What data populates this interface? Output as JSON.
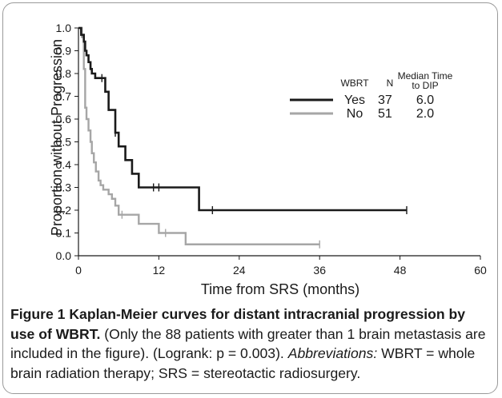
{
  "chart_data": {
    "type": "line",
    "step": true,
    "xlabel": "Time from SRS (months)",
    "ylabel": "Proportion without Progression",
    "xlim": [
      0,
      60
    ],
    "ylim": [
      0,
      1.0
    ],
    "xticks": [
      "0",
      "12",
      "24",
      "36",
      "48",
      "60"
    ],
    "yticks": [
      "0.0",
      "0.1",
      "0.2",
      "0.3",
      "0.4",
      "0.5",
      "0.6",
      "0.7",
      "0.8",
      "0.9",
      "1.0"
    ],
    "grid": false,
    "legend": {
      "placement": "center-right",
      "title": "WBRT",
      "col_n": "N",
      "col_median": [
        "Median Time",
        "to DIP"
      ],
      "entries": [
        {
          "label": "Yes",
          "n": "37",
          "median": "6.0",
          "color": "#1a1a1a"
        },
        {
          "label": "No",
          "n": "51",
          "median": "2.0",
          "color": "#a6a6a6"
        }
      ]
    },
    "series": [
      {
        "name": "Yes",
        "color": "#1a1a1a",
        "x": [
          0,
          0.4,
          0.8,
          1.0,
          1.2,
          1.5,
          1.8,
          2.0,
          2.5,
          3.0,
          3.5,
          4.0,
          4.5,
          5.0,
          5.5,
          6.0,
          6.5,
          7.0,
          8.0,
          9.0,
          11.0,
          12.0,
          18.0,
          20.0,
          49.0
        ],
        "y": [
          1.0,
          0.97,
          0.94,
          0.9,
          0.88,
          0.85,
          0.82,
          0.8,
          0.78,
          0.78,
          0.78,
          0.72,
          0.64,
          0.64,
          0.54,
          0.48,
          0.48,
          0.42,
          0.36,
          0.3,
          0.3,
          0.3,
          0.2,
          0.2,
          0.2
        ],
        "censored_x": [
          3.5,
          5.5,
          11.2,
          12.0,
          20.0,
          49.0
        ]
      },
      {
        "name": "No",
        "color": "#a6a6a6",
        "x": [
          0,
          0.5,
          0.8,
          1.0,
          1.2,
          1.5,
          1.8,
          2.0,
          2.3,
          2.6,
          3.0,
          3.3,
          3.7,
          4.0,
          4.5,
          5.0,
          5.5,
          6.0,
          6.5,
          7.0,
          9.0,
          10.0,
          12.0,
          13.0,
          16.0,
          36.0
        ],
        "y": [
          1.0,
          0.96,
          0.82,
          0.65,
          0.6,
          0.55,
          0.5,
          0.45,
          0.41,
          0.37,
          0.33,
          0.31,
          0.29,
          0.29,
          0.27,
          0.25,
          0.22,
          0.18,
          0.18,
          0.18,
          0.14,
          0.14,
          0.1,
          0.1,
          0.05,
          0.05
        ],
        "censored_x": [
          6.5,
          13.0,
          36.0
        ]
      }
    ]
  },
  "caption": {
    "figure_label": "Figure 1",
    "title": " Kaplan-Meier curves for distant intracranial progression by use of WBRT.",
    "body": " (Only the 88 patients with greater than 1 brain metastasis are included in the figure). (Logrank: p = 0.003). ",
    "abbr_label": "Abbreviations:",
    "abbr_text": " WBRT = whole brain radiation therapy; SRS = stereotactic radiosurgery."
  }
}
